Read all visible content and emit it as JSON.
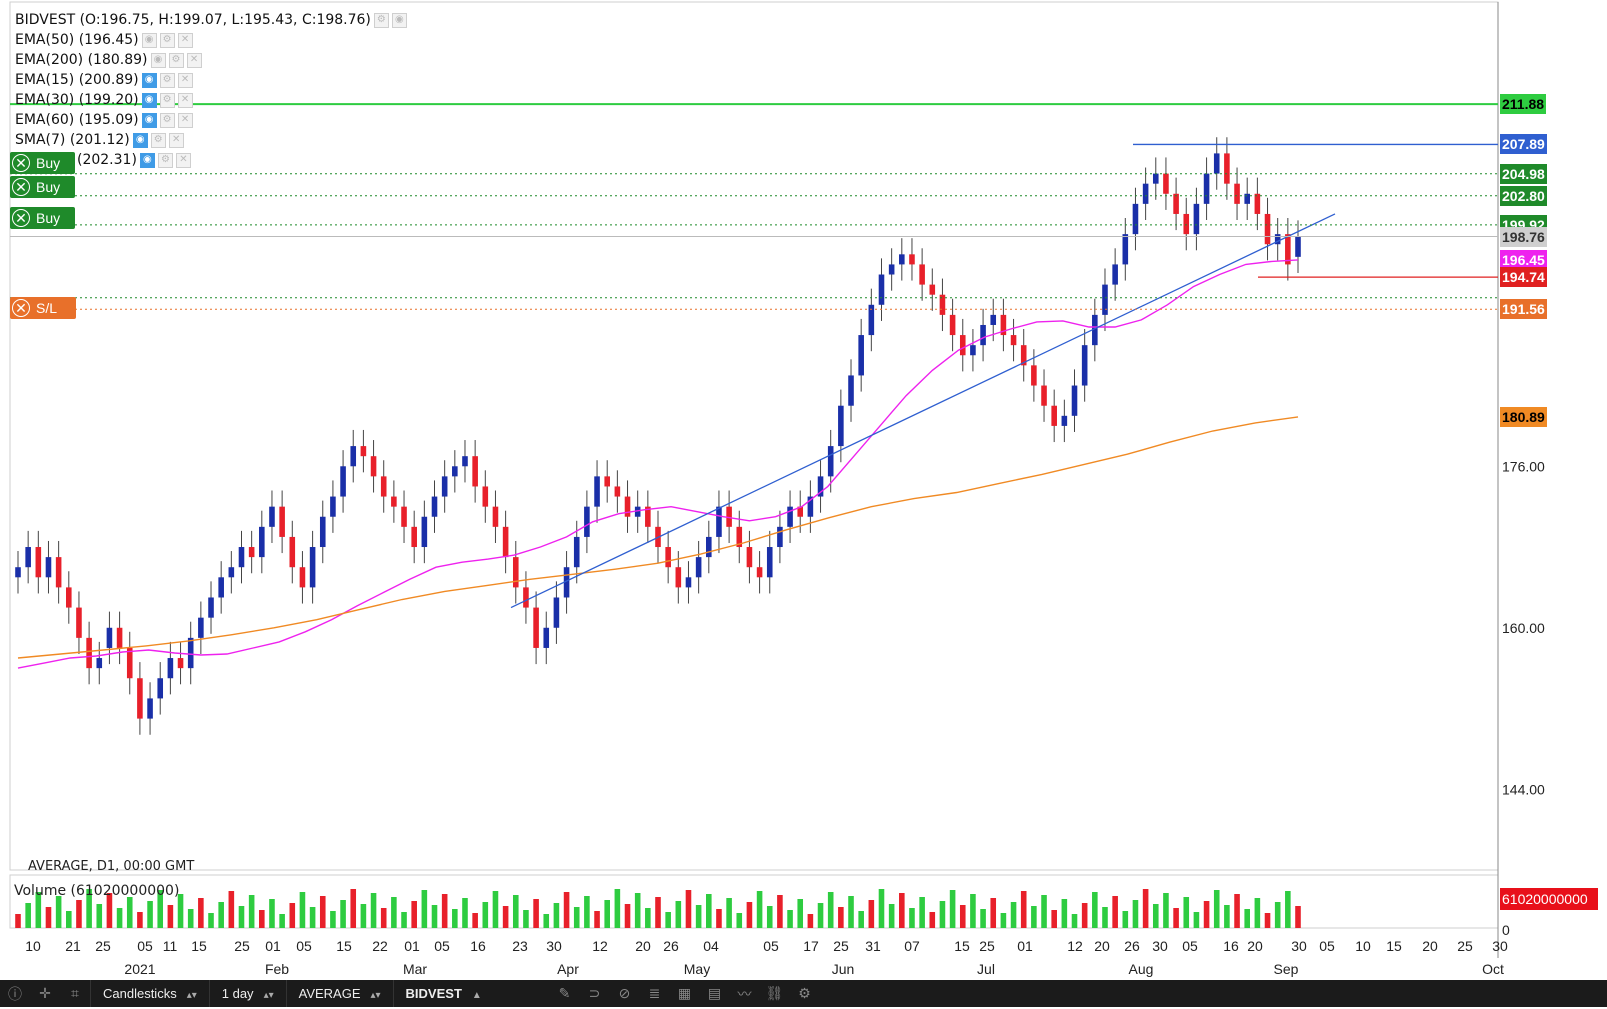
{
  "legend": {
    "symbol_line": "BIDVEST (O:196.75, H:199.07, L:195.43, C:198.76)",
    "indicators": [
      {
        "label": "EMA(50) (196.45)",
        "active": false
      },
      {
        "label": "EMA(200) (180.89)",
        "active": false
      },
      {
        "label": "EMA(15) (200.89)",
        "active": true
      },
      {
        "label": "EMA(30) (199.20)",
        "active": true
      },
      {
        "label": "EMA(60) (195.09)",
        "active": true
      },
      {
        "label": "SMA(7) (201.12)",
        "active": true
      },
      {
        "label": "(202.31)",
        "active": true
      }
    ]
  },
  "trades": [
    {
      "label": "Buy",
      "price_label": "204.98"
    },
    {
      "label": "Buy",
      "price_label": "202.80"
    },
    {
      "label": "Buy",
      "price_label": "199.92"
    },
    {
      "label": "S/L",
      "price_label": "191.56"
    }
  ],
  "price_labels": [
    {
      "text": "211.88",
      "bg": "#2ecc40",
      "fg": "#000"
    },
    {
      "text": "207.89",
      "bg": "#2f5fd0",
      "fg": "#fff"
    },
    {
      "text": "204.98",
      "bg": "#1f8a2a",
      "fg": "#fff"
    },
    {
      "text": "202.80",
      "bg": "#1f8a2a",
      "fg": "#fff"
    },
    {
      "text": "199.92",
      "bg": "#1f8a2a",
      "fg": "#fff"
    },
    {
      "text": "198.76",
      "bg": "#cfcfcf",
      "fg": "#333"
    },
    {
      "text": "196.45",
      "bg": "#ee22ee",
      "fg": "#fff"
    },
    {
      "text": "194.74",
      "bg": "#e02020",
      "fg": "#fff"
    },
    {
      "text": "191.56",
      "bg": "#e8702a",
      "fg": "#fff"
    },
    {
      "text": "180.89",
      "bg": "#f08a24",
      "fg": "#000"
    }
  ],
  "chart_data": {
    "type": "candlestick",
    "symbol": "BIDVEST",
    "timeframe": "D1",
    "footer_label": "AVERAGE, D1, 00:00 GMT",
    "y_ticks": [
      144.0,
      160.0,
      176.0
    ],
    "y_tick_labels": [
      "144.00",
      "160.00",
      "176.00"
    ],
    "ylim": [
      136.0,
      222.0
    ],
    "x_tick_labels": [
      "10",
      "21",
      "25",
      "05",
      "11",
      "15",
      "25",
      "01",
      "05",
      "15",
      "22",
      "01",
      "05",
      "16",
      "23",
      "30",
      "12",
      "20",
      "26",
      "04",
      "05",
      "17",
      "25",
      "31",
      "07",
      "15",
      "25",
      "01",
      "12",
      "20",
      "26",
      "30",
      "05",
      "16",
      "20",
      "30",
      "05",
      "10",
      "15",
      "20",
      "25",
      "30"
    ],
    "month_labels": [
      "2021",
      "Feb",
      "Mar",
      "Apr",
      "May",
      "Jun",
      "Jul",
      "Aug",
      "Sep",
      "Oct"
    ],
    "candles_close": [
      166,
      168,
      165,
      167,
      164,
      162,
      159,
      156,
      157,
      160,
      158,
      155,
      151,
      153,
      155,
      157,
      156,
      159,
      161,
      163,
      165,
      166,
      168,
      167,
      170,
      172,
      169,
      166,
      164,
      168,
      171,
      173,
      176,
      178,
      177,
      175,
      173,
      172,
      170,
      168,
      171,
      173,
      175,
      176,
      177,
      174,
      172,
      170,
      167,
      164,
      162,
      158,
      160,
      163,
      166,
      169,
      172,
      175,
      174,
      173,
      171,
      172,
      170,
      168,
      166,
      164,
      165,
      167,
      169,
      172,
      170,
      168,
      166,
      165,
      168,
      170,
      172,
      171,
      173,
      175,
      178,
      182,
      185,
      189,
      192,
      195,
      196,
      197,
      196,
      194,
      193,
      191,
      189,
      187,
      188,
      190,
      191,
      189,
      188,
      186,
      184,
      182,
      180,
      181,
      184,
      188,
      191,
      194,
      196,
      199,
      202,
      204,
      205,
      203,
      201,
      199,
      202,
      205,
      207,
      204,
      202,
      203,
      201,
      198,
      199,
      196,
      198.76
    ],
    "candles_open": [
      165,
      166,
      168,
      165,
      167,
      164,
      162,
      159,
      156,
      158,
      160,
      158,
      155,
      151,
      153,
      155,
      157,
      156,
      159,
      161,
      163,
      165,
      166,
      168,
      167,
      170,
      172,
      169,
      166,
      164,
      168,
      171,
      173,
      176,
      178,
      177,
      175,
      173,
      172,
      170,
      168,
      171,
      173,
      175,
      176,
      177,
      174,
      172,
      170,
      167,
      164,
      162,
      158,
      160,
      163,
      166,
      169,
      172,
      175,
      174,
      173,
      171,
      172,
      170,
      168,
      166,
      164,
      165,
      167,
      169,
      172,
      170,
      168,
      166,
      165,
      168,
      170,
      172,
      171,
      173,
      175,
      178,
      182,
      185,
      189,
      192,
      195,
      196,
      197,
      196,
      194,
      193,
      191,
      189,
      187,
      188,
      190,
      191,
      189,
      188,
      186,
      184,
      182,
      180,
      181,
      184,
      188,
      191,
      194,
      196,
      199,
      202,
      204,
      205,
      203,
      201,
      199,
      202,
      205,
      207,
      204,
      202,
      203,
      201,
      198,
      199,
      196.75
    ],
    "series": [
      {
        "name": "EMA(50)",
        "color": "#ee22ee",
        "values": [
          156,
          156.5,
          157,
          157.2,
          157.6,
          157.8,
          157.5,
          157.3,
          157.4,
          158,
          158.6,
          159.6,
          160.8,
          162.2,
          163.5,
          164.8,
          166,
          166.5,
          166.8,
          167.2,
          168,
          169,
          170.5,
          171.3,
          171.7,
          172,
          171.5,
          171,
          170.6,
          171,
          172,
          174,
          177,
          180,
          183,
          185.5,
          187.5,
          188.8,
          189.6,
          190.3,
          190.4,
          189.8,
          189.8,
          190.5,
          192,
          193.8,
          195,
          196,
          196.3,
          196.45
        ]
      },
      {
        "name": "EMA(200)",
        "color": "#f08a24",
        "values": [
          157,
          157.4,
          157.8,
          158.2,
          158.7,
          159.3,
          160,
          160.8,
          161.8,
          162.8,
          163.6,
          164.2,
          164.8,
          165.3,
          165.8,
          166.4,
          167.3,
          168.4,
          169.7,
          170.9,
          172,
          172.8,
          173.4,
          174.3,
          175.2,
          176.2,
          177.2,
          178.4,
          179.5,
          180.3,
          180.89
        ]
      }
    ],
    "trendlines": [
      {
        "name": "ascending-support",
        "color": "#2f5fd0"
      },
      {
        "name": "resistance-207.89",
        "color": "#2f5fd0",
        "value": 207.89
      },
      {
        "name": "level-211.88",
        "color": "#2ecc40",
        "value": 211.88
      },
      {
        "name": "level-194.74",
        "color": "#e02020",
        "value": 194.74
      }
    ],
    "volume_label": "Volume (61020000000)",
    "volume_axis_label": "61020000000",
    "volume_axis_zero": "0",
    "grid": false
  },
  "toolbar": {
    "chart_type": "Candlesticks",
    "interval": "1 day",
    "account": "AVERAGE",
    "symbol": "BIDVEST"
  }
}
